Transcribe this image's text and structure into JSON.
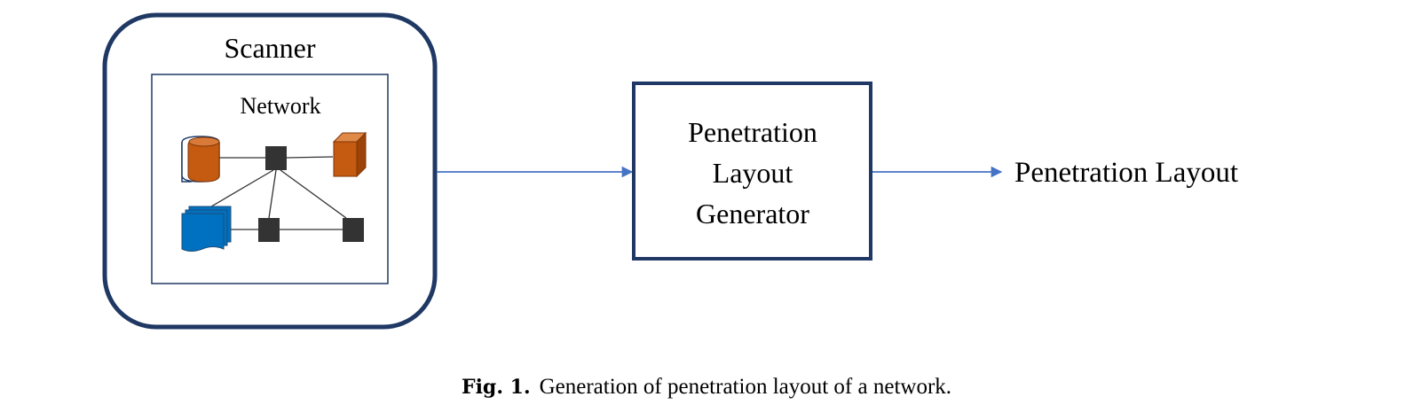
{
  "scanner": {
    "title": "Scanner",
    "network_label": "Network"
  },
  "generator": {
    "lines": [
      "Penetration",
      "Layout",
      "Generator"
    ]
  },
  "output": {
    "label": "Penetration Layout"
  },
  "caption": {
    "label": "Fig. 1.",
    "text": "Generation of penetration layout of a network."
  },
  "colors": {
    "box_border": "#1f3864",
    "arrow": "#4472c4",
    "database": "#c55a11",
    "server": "#c55a11",
    "documents": "#0070c0",
    "node": "#333333"
  },
  "icons": {
    "database": "database-icon",
    "server": "server-cube-icon",
    "documents": "documents-icon",
    "switch": "switch-node-icon"
  }
}
